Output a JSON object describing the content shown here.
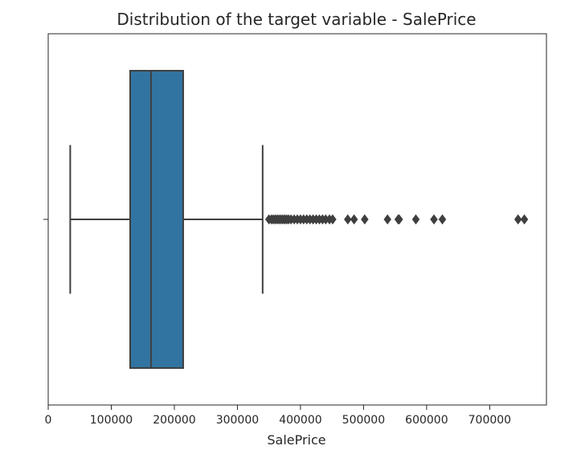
{
  "chart_data": {
    "type": "box",
    "title": "Distribution of the target variable - SalePrice",
    "xlabel": "SalePrice",
    "ylabel": "",
    "xlim": [
      0,
      790000
    ],
    "xticks": [
      0,
      100000,
      200000,
      300000,
      400000,
      500000,
      600000,
      700000
    ],
    "xtick_labels": [
      "0",
      "100000",
      "200000",
      "300000",
      "400000",
      "500000",
      "600000",
      "700000"
    ],
    "orientation": "horizontal",
    "grid": false,
    "box": {
      "whisker_low": 34900,
      "q1": 129975,
      "median": 163000,
      "q3": 214000,
      "whisker_high": 340000,
      "color": "#3274a1",
      "line_color": "#3f3f3f"
    },
    "outliers": [
      350000,
      354000,
      357000,
      360000,
      363000,
      366000,
      369000,
      372000,
      375000,
      378000,
      381000,
      385000,
      390000,
      395000,
      400000,
      405000,
      410000,
      415000,
      420000,
      425000,
      430000,
      435000,
      440000,
      446000,
      451000,
      475000,
      485000,
      501837,
      538000,
      555000,
      556581,
      582933,
      611657,
      625000,
      745000,
      755000
    ]
  }
}
